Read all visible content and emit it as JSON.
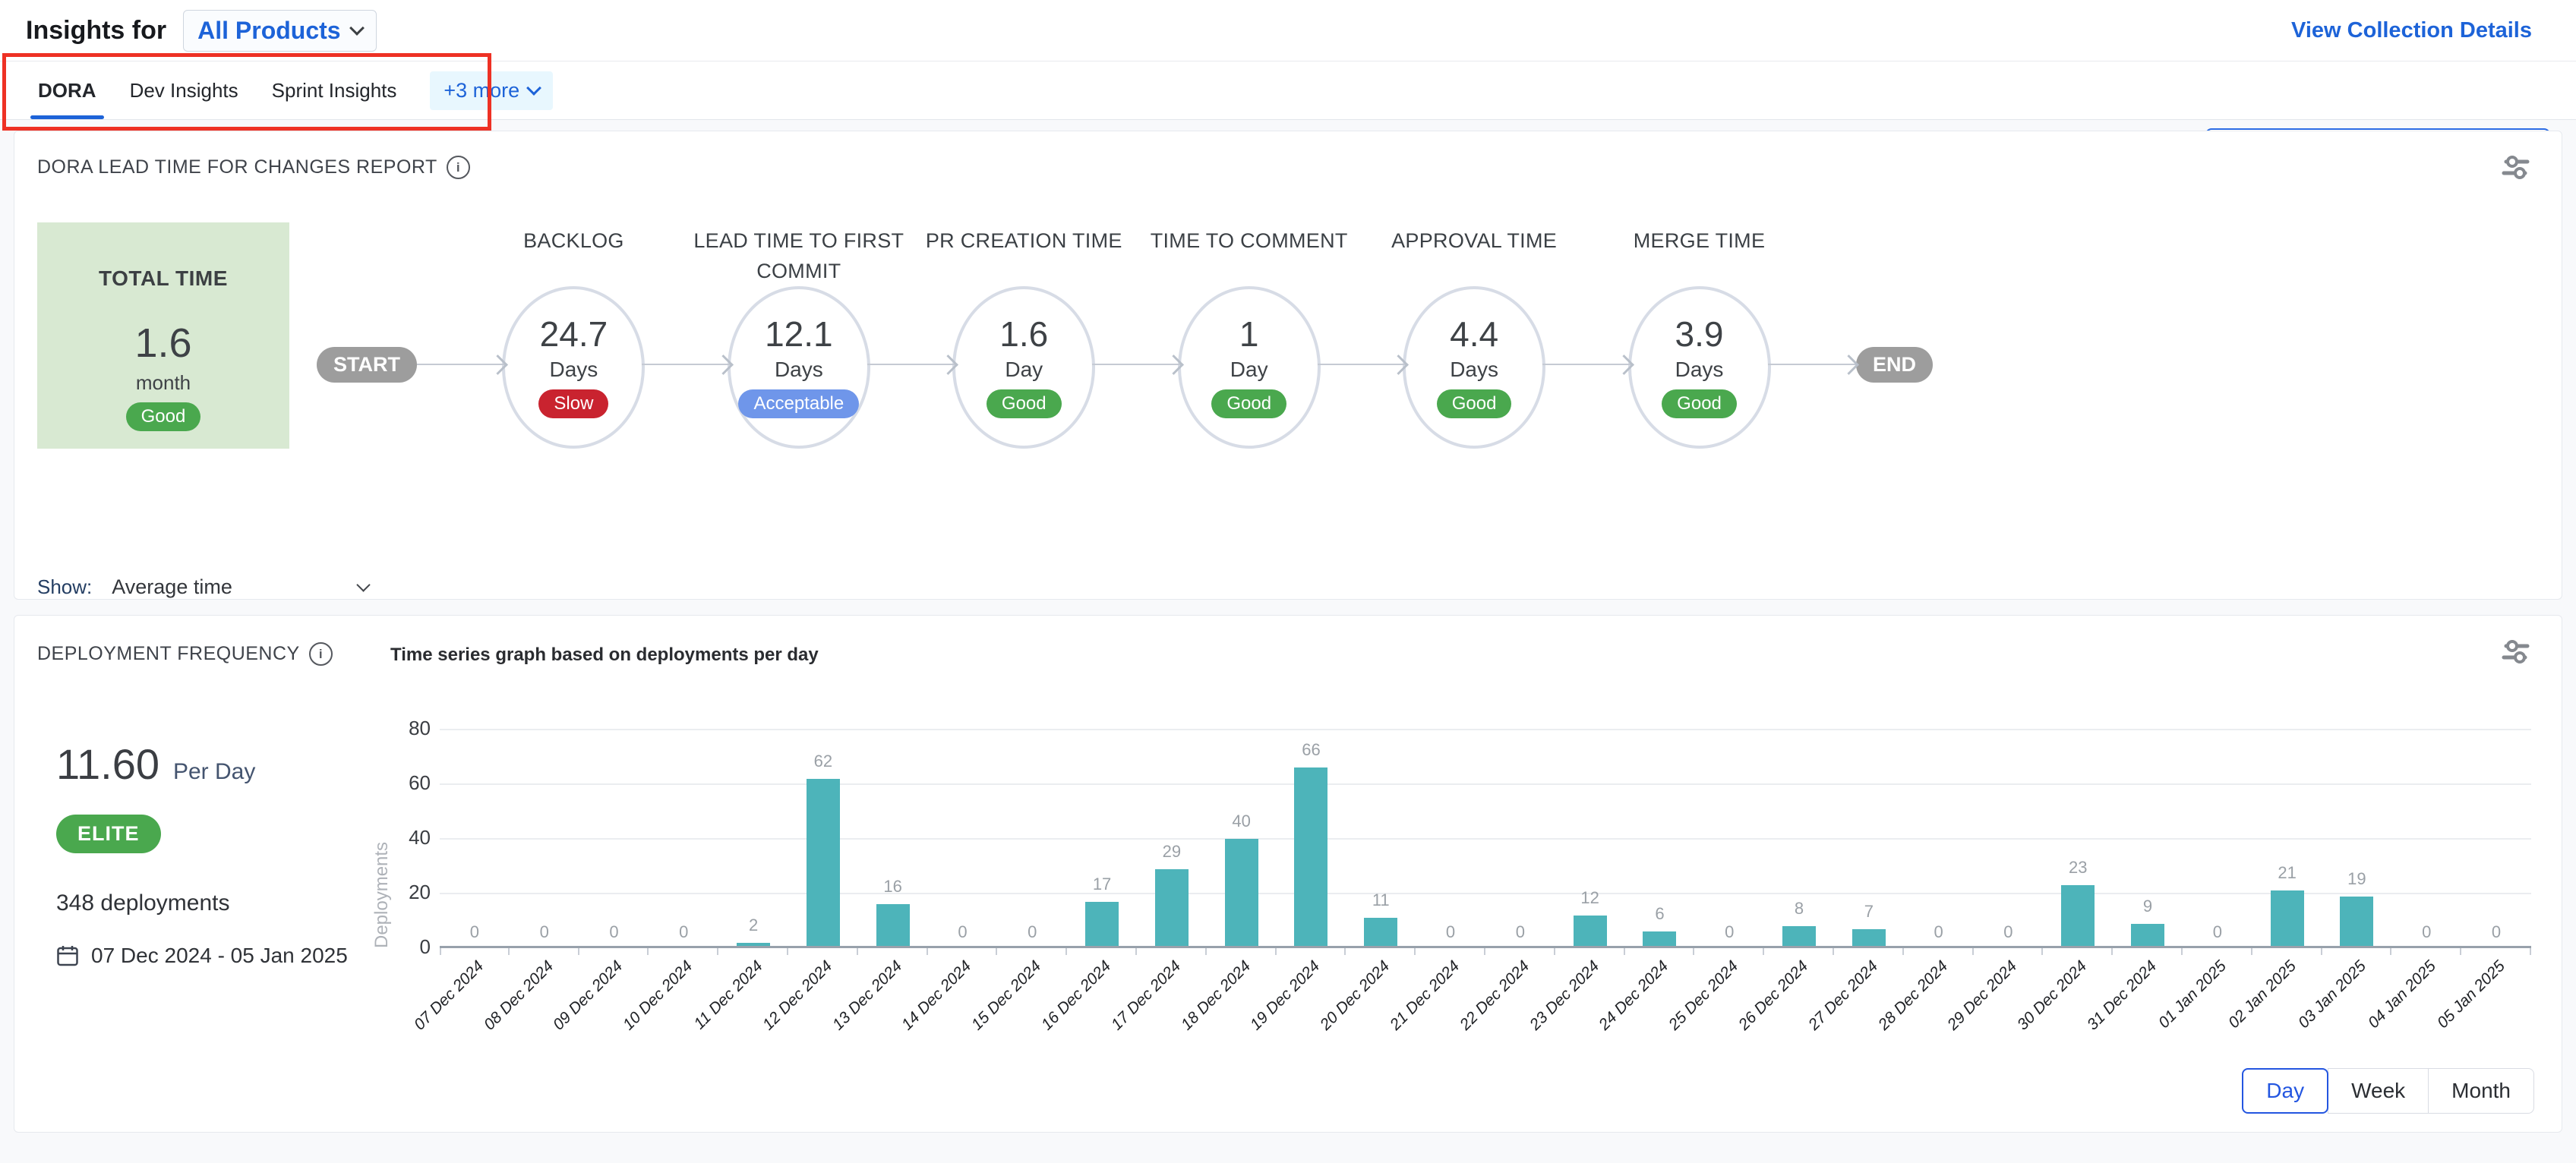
{
  "header": {
    "title": "Insights for",
    "product_selector": "All Products",
    "view_collection_details": "View Collection Details"
  },
  "tabs": {
    "items": [
      {
        "label": "DORA",
        "active": true
      },
      {
        "label": "Dev Insights",
        "active": false
      },
      {
        "label": "Sprint Insights",
        "active": false
      }
    ],
    "more_label": "+3 more",
    "date_range": "07 Dec 2024 - 05 Jan 2025"
  },
  "lead_time_card": {
    "title": "DORA LEAD TIME FOR CHANGES REPORT",
    "total": {
      "label": "TOTAL TIME",
      "value": "1.6",
      "unit": "month",
      "badge": "Good",
      "badge_type": "good"
    },
    "start_label": "START",
    "end_label": "END",
    "stages": [
      {
        "name": "BACKLOG",
        "value": "24.7",
        "unit": "Days",
        "badge": "Slow",
        "badge_type": "slow"
      },
      {
        "name": "LEAD TIME TO FIRST COMMIT",
        "value": "12.1",
        "unit": "Days",
        "badge": "Acceptable",
        "badge_type": "acceptable"
      },
      {
        "name": "PR CREATION TIME",
        "value": "1.6",
        "unit": "Day",
        "badge": "Good",
        "badge_type": "good"
      },
      {
        "name": "TIME TO COMMENT",
        "value": "1",
        "unit": "Day",
        "badge": "Good",
        "badge_type": "good"
      },
      {
        "name": "APPROVAL TIME",
        "value": "4.4",
        "unit": "Days",
        "badge": "Good",
        "badge_type": "good"
      },
      {
        "name": "MERGE TIME",
        "value": "3.9",
        "unit": "Days",
        "badge": "Good",
        "badge_type": "good"
      }
    ],
    "show_label": "Show:",
    "show_value": "Average time",
    "legend": [
      {
        "label": "Good",
        "color": "#4aa84e"
      },
      {
        "label": "Acceptable",
        "color": "#6f96ea"
      },
      {
        "label": "Slow",
        "color": "#c9232f"
      }
    ]
  },
  "deployment_card": {
    "title": "DEPLOYMENT FREQUENCY",
    "subtitle": "Time series graph based on deployments per day",
    "rate_value": "11.60",
    "rate_unit": "Per Day",
    "tier_badge": "ELITE",
    "total_deployments": "348 deployments",
    "date_range": "07 Dec 2024 - 05 Jan 2025",
    "granularity": [
      {
        "label": "Day",
        "active": true
      },
      {
        "label": "Week",
        "active": false
      },
      {
        "label": "Month",
        "active": false
      }
    ]
  },
  "chart_data": {
    "type": "bar",
    "title": "Time series graph based on deployments per day",
    "xlabel": "",
    "ylabel": "Deployments",
    "ylim": [
      0,
      80
    ],
    "yticks": [
      0,
      20,
      40,
      60,
      80
    ],
    "grid": true,
    "legend_position": "none",
    "bar_color": "#4db4ba",
    "categories": [
      "07 Dec 2024",
      "08 Dec 2024",
      "09 Dec 2024",
      "10 Dec 2024",
      "11 Dec 2024",
      "12 Dec 2024",
      "13 Dec 2024",
      "14 Dec 2024",
      "15 Dec 2024",
      "16 Dec 2024",
      "17 Dec 2024",
      "18 Dec 2024",
      "19 Dec 2024",
      "20 Dec 2024",
      "21 Dec 2024",
      "22 Dec 2024",
      "23 Dec 2024",
      "24 Dec 2024",
      "25 Dec 2024",
      "26 Dec 2024",
      "27 Dec 2024",
      "28 Dec 2024",
      "29 Dec 2024",
      "30 Dec 2024",
      "31 Dec 2024",
      "01 Jan 2025",
      "02 Jan 2025",
      "03 Jan 2025",
      "04 Jan 2025",
      "05 Jan 2025"
    ],
    "values": [
      0,
      0,
      0,
      0,
      2,
      62,
      16,
      0,
      0,
      17,
      29,
      40,
      66,
      11,
      0,
      0,
      12,
      6,
      0,
      8,
      7,
      0,
      0,
      23,
      9,
      0,
      21,
      19,
      0,
      0
    ]
  },
  "colors": {
    "accent_blue": "#1d63d8",
    "annotation_red": "#ee3124",
    "good_green": "#4aa84e",
    "acceptable_blue": "#6f96ea",
    "slow_red": "#c9232f",
    "bar_teal": "#4db4ba",
    "total_box_green": "#d8e9d2",
    "start_end_gray": "#9d9d9d"
  }
}
